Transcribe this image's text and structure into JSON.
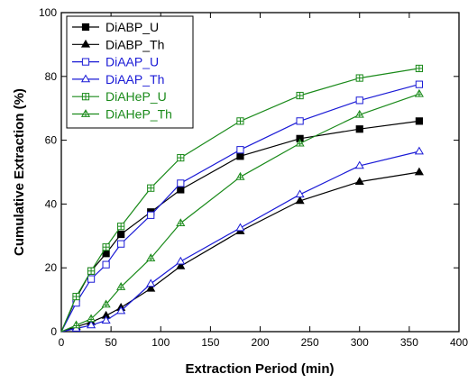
{
  "chart_data": {
    "type": "line",
    "title": "",
    "xlabel": "Extraction Period (min)",
    "ylabel": "Cumulative Extraction (%)",
    "xlim": [
      0,
      400
    ],
    "ylim": [
      0,
      100
    ],
    "xticks": [
      0,
      50,
      100,
      150,
      200,
      250,
      300,
      350,
      400
    ],
    "yticks": [
      0,
      20,
      40,
      60,
      80,
      100
    ],
    "grid": false,
    "legend_position": "top-left",
    "x": [
      0,
      15,
      30,
      45,
      60,
      90,
      120,
      180,
      240,
      300,
      360
    ],
    "series": [
      {
        "name": "DiABP_U",
        "color": "#000000",
        "marker": "filled-square",
        "values": [
          0,
          10.5,
          19,
          24.5,
          30.5,
          37.5,
          44.5,
          55,
          60.5,
          63.5,
          66
        ]
      },
      {
        "name": "DiABP_Th",
        "color": "#000000",
        "marker": "filled-triangle",
        "values": [
          0,
          1.5,
          3,
          5,
          7.5,
          13.5,
          20.5,
          31.5,
          41,
          47,
          50
        ]
      },
      {
        "name": "DiAAP_U",
        "color": "#1a1ad6",
        "marker": "open-square",
        "values": [
          0,
          9,
          16.5,
          21,
          27.5,
          36.5,
          46.5,
          57,
          66,
          72.5,
          77.5
        ]
      },
      {
        "name": "DiAAP_Th",
        "color": "#1a1ad6",
        "marker": "open-triangle",
        "values": [
          0,
          1,
          2,
          3.5,
          6.5,
          15,
          22,
          32.5,
          43,
          52,
          56.5
        ]
      },
      {
        "name": "DiAHeP_U",
        "color": "#1a8a1a",
        "marker": "crossed-square",
        "values": [
          0,
          11,
          19,
          26.5,
          33,
          45,
          54.5,
          66,
          74,
          79.5,
          82.5
        ]
      },
      {
        "name": "DiAHeP_Th",
        "color": "#1a8a1a",
        "marker": "crossed-triangle",
        "values": [
          0,
          2,
          4,
          8.5,
          14,
          23,
          34,
          48.5,
          59,
          68,
          74.5
        ]
      }
    ]
  }
}
